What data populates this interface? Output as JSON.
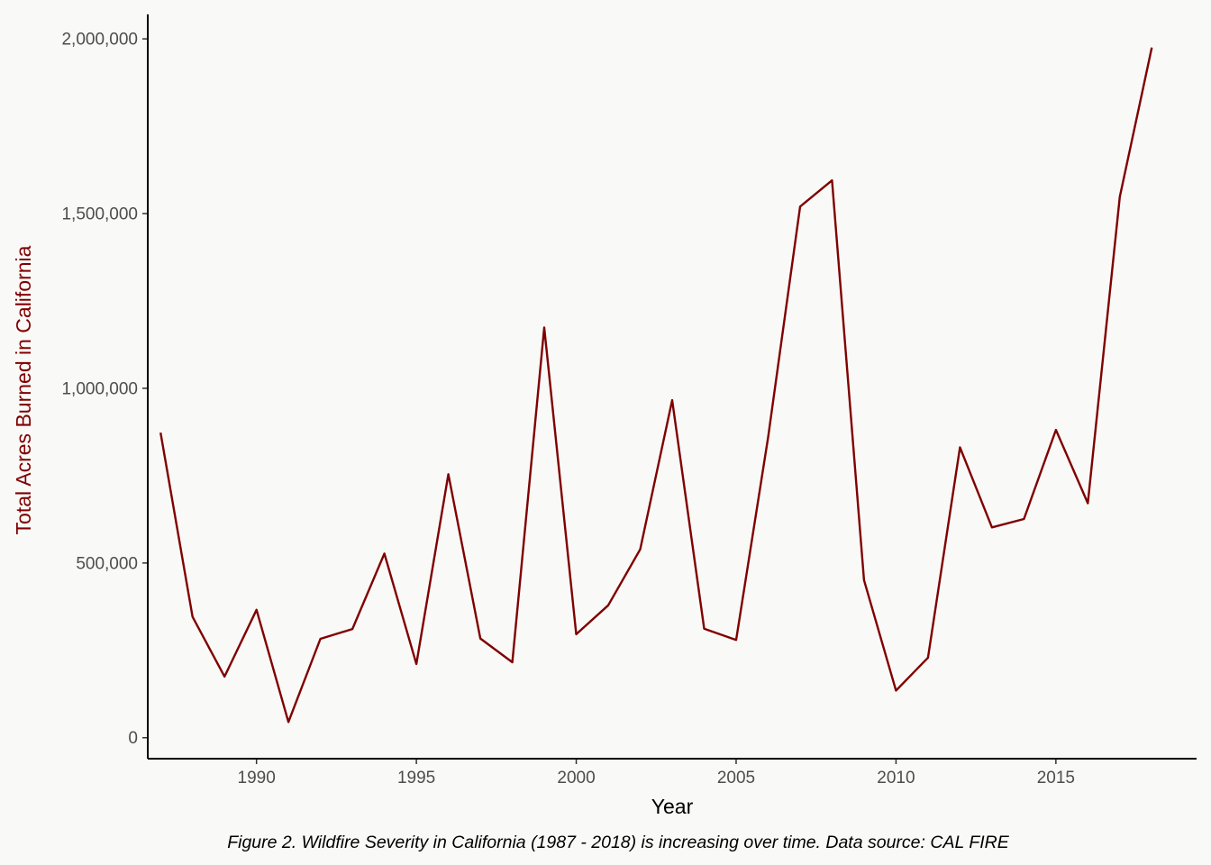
{
  "chart_data": {
    "type": "line",
    "title": "",
    "xlabel": "Year",
    "ylabel": "Total Acres Burned in California",
    "caption": "Figure 2. Wildfire Severity in California (1987 - 2018) is increasing over time. Data source: CAL FIRE",
    "xlim": [
      1986.6,
      2019.4
    ],
    "ylim": [
      -60000,
      2070000
    ],
    "x_ticks": [
      1990,
      1995,
      2000,
      2005,
      2010,
      2015
    ],
    "x_tick_labels": [
      "1990",
      "1995",
      "2000",
      "2005",
      "2010",
      "2015"
    ],
    "y_ticks": [
      0,
      500000,
      1000000,
      1500000,
      2000000
    ],
    "y_tick_labels": [
      "0",
      "500,000",
      "1,000,000",
      "1,500,000",
      "2,000,000"
    ],
    "grid": false,
    "series": [
      {
        "color": "#7f0000",
        "x": [
          1987,
          1988,
          1989,
          1990,
          1991,
          1992,
          1993,
          1994,
          1995,
          1996,
          1997,
          1998,
          1999,
          2000,
          2001,
          2002,
          2003,
          2004,
          2005,
          2006,
          2007,
          2008,
          2009,
          2010,
          2011,
          2012,
          2013,
          2014,
          2015,
          2016,
          2017,
          2018
        ],
        "y": [
          873000,
          346000,
          175000,
          366000,
          45000,
          283000,
          311000,
          527000,
          211000,
          754000,
          284000,
          216000,
          1174000,
          296000,
          379000,
          539000,
          966000,
          312000,
          280000,
          860000,
          1520000,
          1595000,
          451000,
          135000,
          229000,
          831000,
          602000,
          626000,
          881000,
          671000,
          1548000,
          1975000
        ]
      }
    ],
    "colors": {
      "line": "#7f0000",
      "ylabel": "#7f0000",
      "xlabel": "#000000",
      "axis": "#000000",
      "background": "#f9f9f7"
    }
  }
}
